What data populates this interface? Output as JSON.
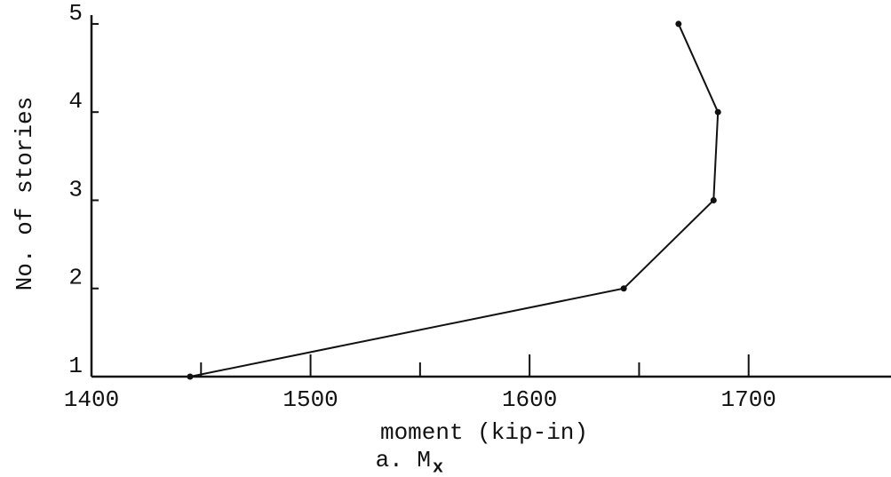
{
  "chart_data": {
    "type": "line",
    "x_label": "moment (kip-in)",
    "y_label": "No. of stories",
    "caption": "a. M",
    "caption_subscript": "x",
    "series": [
      {
        "color": "#111111",
        "x": [
          1445,
          1643,
          1684,
          1686,
          1668
        ],
        "values": [
          1,
          2,
          3,
          4,
          5
        ]
      }
    ],
    "xlim": [
      1400,
      1765
    ],
    "ylim": [
      1,
      5.1
    ],
    "xticks": [
      1400,
      1500,
      1600,
      1700
    ],
    "xminorticks": [
      1450,
      1550,
      1650
    ],
    "yticks": [
      1,
      2,
      3,
      4,
      5
    ],
    "grid": false
  }
}
